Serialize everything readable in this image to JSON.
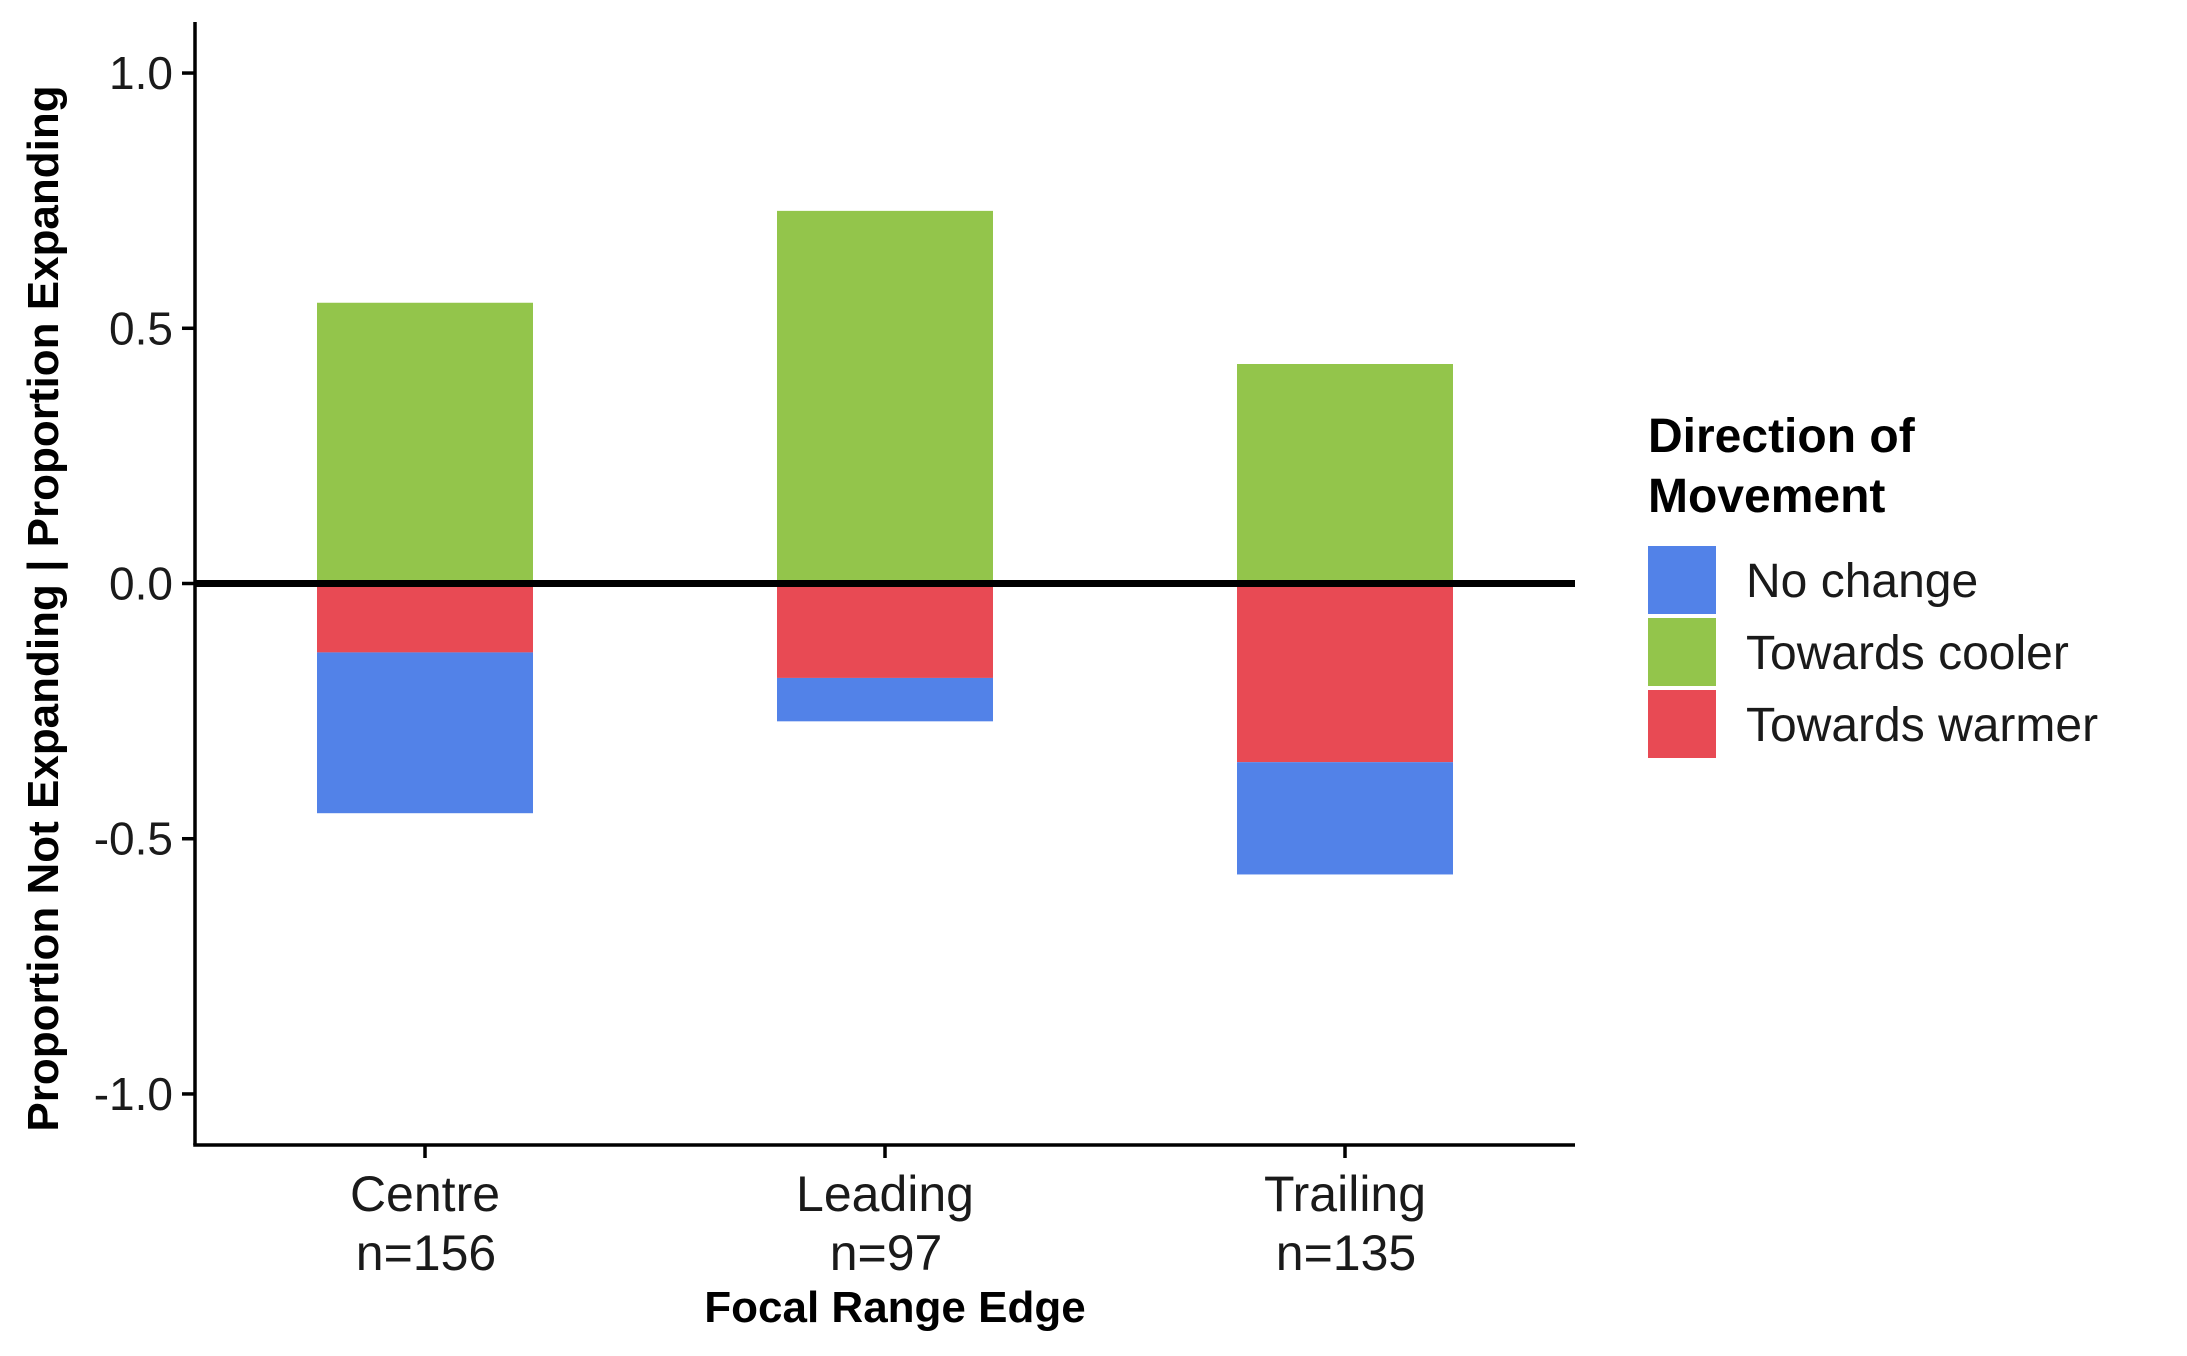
{
  "chart_data": {
    "type": "bar",
    "stacked": true,
    "diverging": true,
    "title": "",
    "xlabel": "Focal Range Edge",
    "ylabel": "Proportion Not Expanding | Proportion Expanding",
    "ylim": [
      -1.1,
      1.1
    ],
    "yticks": [
      -1.0,
      -0.5,
      0.0,
      0.5,
      1.0
    ],
    "ytick_labels": [
      "-1.0",
      "-0.5",
      "0.0",
      "0.5",
      "1.0"
    ],
    "grid": false,
    "zero_line": true,
    "categories": [
      "Centre",
      "Leading",
      "Trailing"
    ],
    "category_counts": [
      "n=156",
      "n=97",
      "n=135"
    ],
    "legend": {
      "title_lines": [
        "Direction of",
        "Movement"
      ],
      "position": "right",
      "entries": [
        "No change",
        "Towards cooler",
        "Towards warmer"
      ]
    },
    "series": [
      {
        "name": "Towards cooler",
        "color": "#93c54b",
        "segments": [
          {
            "from": 0.0,
            "to": 0.55
          },
          {
            "from": 0.0,
            "to": 0.73
          },
          {
            "from": 0.0,
            "to": 0.43
          }
        ]
      },
      {
        "name": "Towards warmer",
        "color": "#e84a54",
        "segments": [
          {
            "from": 0.0,
            "to": -0.135
          },
          {
            "from": 0.0,
            "to": -0.185
          },
          {
            "from": 0.0,
            "to": -0.35
          }
        ]
      },
      {
        "name": "No change",
        "color": "#5282e8",
        "segments": [
          {
            "from": -0.135,
            "to": -0.45
          },
          {
            "from": -0.185,
            "to": -0.27
          },
          {
            "from": -0.35,
            "to": -0.57
          }
        ]
      }
    ]
  }
}
